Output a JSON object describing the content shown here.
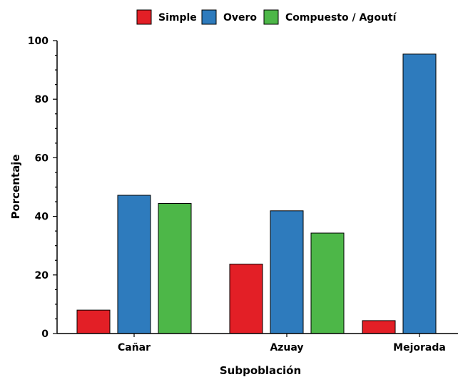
{
  "chart_data": {
    "type": "bar",
    "title": "",
    "xlabel": "Subpoblación",
    "ylabel": "Porcentaje",
    "categories": [
      "Cañar",
      "Azuay",
      "Mejorada"
    ],
    "series": [
      {
        "name": "Simple",
        "color": "#e31f26",
        "values": [
          8.0,
          23.7,
          4.4
        ]
      },
      {
        "name": "Overo",
        "color": "#2e7bbd",
        "values": [
          47.2,
          41.9,
          95.4
        ]
      },
      {
        "name": "Compuesto / Agoutí",
        "color": "#4db748",
        "values": [
          44.4,
          34.3,
          null
        ]
      }
    ],
    "ylim": [
      0,
      100
    ],
    "yticks": [
      0,
      20,
      40,
      60,
      80,
      100
    ],
    "grid": false,
    "legend_position": "top-center"
  }
}
